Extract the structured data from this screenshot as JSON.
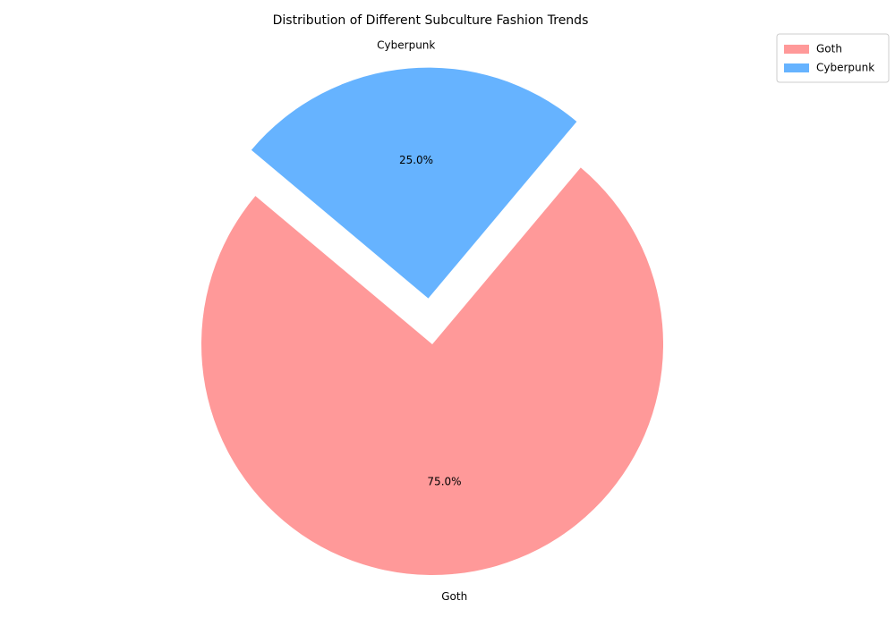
{
  "chart_data": {
    "type": "pie",
    "title": "Distribution of Different Subculture Fashion Trends",
    "categories": [
      "Goth",
      "Cyberpunk"
    ],
    "values": [
      75,
      25
    ],
    "value_labels": [
      "75.0%",
      "25.0%"
    ],
    "colors": [
      "#ff9999",
      "#66b3ff"
    ],
    "legend": "upper right"
  }
}
